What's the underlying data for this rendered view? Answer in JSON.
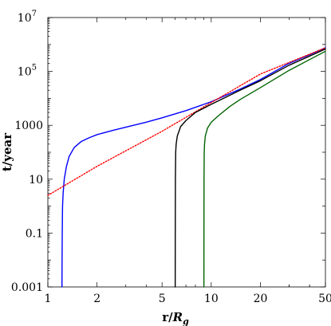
{
  "chart_data": {
    "type": "line",
    "xscale": "log",
    "yscale": "log",
    "xlim": [
      1,
      50
    ],
    "ylim": [
      0.001,
      10000000
    ],
    "grid": false,
    "legend": "none",
    "xlabel": {
      "main": "r/",
      "italic": "R",
      "sub": "g"
    },
    "ylabel": "t/year",
    "x_ticks": [
      {
        "value": 1,
        "label": "1"
      },
      {
        "value": 2,
        "label": "2"
      },
      {
        "value": 5,
        "label": "5"
      },
      {
        "value": 10,
        "label": "10"
      },
      {
        "value": 20,
        "label": "20"
      },
      {
        "value": 50,
        "label": "50"
      }
    ],
    "y_ticks": [
      {
        "value": 0.001,
        "label": "0.001"
      },
      {
        "value": 0.1,
        "label": "0.1"
      },
      {
        "value": 10,
        "label": "10"
      },
      {
        "value": 1000,
        "label": "1000"
      },
      {
        "value": 100000,
        "label": "10",
        "sup": "5"
      },
      {
        "value": 10000000,
        "label": "10",
        "sup": "7"
      }
    ],
    "series": [
      {
        "color": "#0000ff",
        "style": "solid",
        "x": [
          1.22,
          1.222,
          1.225,
          1.23,
          1.24,
          1.26,
          1.3,
          1.35,
          1.45,
          1.6,
          1.8,
          2,
          2.5,
          3,
          4,
          5,
          7,
          10,
          15,
          20,
          30,
          50
        ],
        "y": [
          0.001,
          0.01,
          0.1,
          1,
          3,
          10,
          30,
          70,
          150,
          250,
          350,
          450,
          650,
          850,
          1300,
          1900,
          3500,
          7500,
          22000,
          50000,
          200000,
          750000
        ]
      },
      {
        "color": "#ff0000",
        "style": "dotted",
        "x": [
          1,
          2,
          5,
          10,
          20,
          50
        ],
        "y": [
          2.5,
          30,
          600,
          7000,
          80000,
          750000
        ]
      },
      {
        "color": "#000000",
        "style": "solid",
        "x": [
          6.02,
          6.025,
          6.035,
          6.06,
          6.1,
          6.2,
          6.5,
          7,
          8,
          10,
          15,
          20,
          30,
          50
        ],
        "y": [
          0.001,
          0.1,
          10,
          100,
          200,
          400,
          900,
          1500,
          3000,
          6000,
          20000,
          45000,
          170000,
          680000
        ]
      },
      {
        "color": "#006400",
        "style": "solid",
        "x": [
          9.02,
          9.025,
          9.035,
          9.06,
          9.1,
          9.2,
          9.5,
          10,
          11,
          13,
          15,
          20,
          30,
          50
        ],
        "y": [
          0.001,
          0.1,
          10,
          100,
          200,
          400,
          800,
          1300,
          2200,
          5000,
          9000,
          25000,
          110000,
          560000
        ]
      }
    ]
  }
}
